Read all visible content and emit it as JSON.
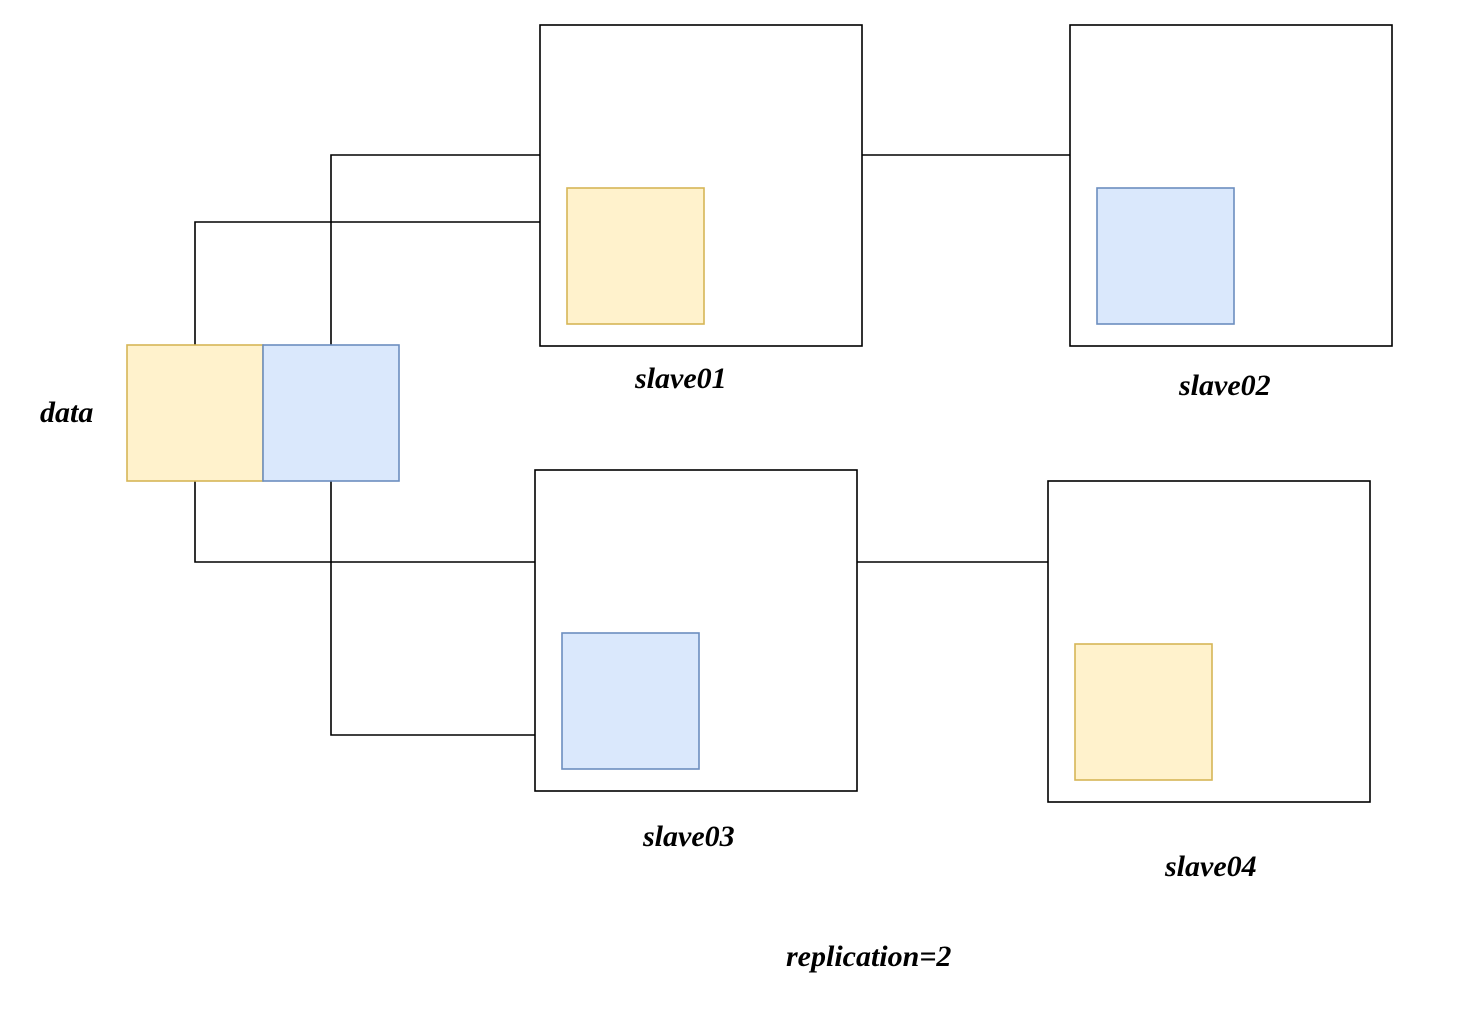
{
  "colors": {
    "yellow_fill": "#fff2cc",
    "yellow_stroke": "#d6b656",
    "blue_fill": "#dae8fc",
    "blue_stroke": "#6c8ebf"
  },
  "labels": {
    "data": "data",
    "slave01": "slave01",
    "slave02": "slave02",
    "slave03": "slave03",
    "slave04": "slave04",
    "replication": "replication=2"
  }
}
